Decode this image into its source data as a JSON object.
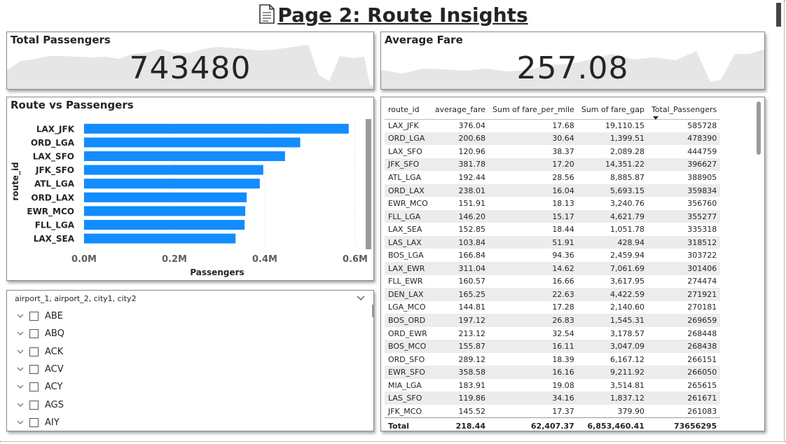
{
  "page": {
    "title": "Page 2: Route Insights",
    "title_icon": "document-icon"
  },
  "kpis": {
    "total_passengers": {
      "title": "Total Passengers",
      "value": "743480"
    },
    "average_fare": {
      "title": "Average Fare",
      "value": "257.08"
    }
  },
  "route_chart": {
    "title": "Route vs Passengers",
    "chart_data": {
      "type": "bar",
      "orientation": "horizontal",
      "title": "Route vs Passengers",
      "xlabel": "Passengers",
      "ylabel": "route_id",
      "categories": [
        "LAX_JFK",
        "ORD_LGA",
        "LAX_SFO",
        "JFK_SFO",
        "ATL_LGA",
        "ORD_LAX",
        "EWR_MCO",
        "FLL_LGA",
        "LAX_SEA"
      ],
      "values": [
        585728,
        478390,
        444759,
        396627,
        388905,
        359834,
        356760,
        355277,
        335318
      ],
      "xlim": [
        0,
        600000
      ],
      "xticks": [
        0,
        200000,
        400000,
        600000
      ],
      "xtick_labels": [
        "0.0M",
        "0.2M",
        "0.4M",
        "0.6M"
      ],
      "bar_color": "#118DFF",
      "grid": true
    }
  },
  "slicer": {
    "header": "airport_1, airport_2, city1, city2",
    "items": [
      "ABE",
      "ABQ",
      "ACK",
      "ACV",
      "ACY",
      "AGS",
      "AIY"
    ]
  },
  "table": {
    "columns": [
      "route_id",
      "average_fare",
      "Sum of fare_per_mile",
      "Sum of fare_gap",
      "Total_Passengers"
    ],
    "rows": [
      [
        "LAX_JFK",
        "376.04",
        "17.68",
        "19,110.15",
        "585728"
      ],
      [
        "ORD_LGA",
        "200.68",
        "30.64",
        "1,399.51",
        "478390"
      ],
      [
        "LAX_SFO",
        "120.96",
        "38.37",
        "2,089.28",
        "444759"
      ],
      [
        "JFK_SFO",
        "381.78",
        "17.20",
        "14,351.22",
        "396627"
      ],
      [
        "ATL_LGA",
        "192.44",
        "28.56",
        "8,885.87",
        "388905"
      ],
      [
        "ORD_LAX",
        "238.01",
        "16.04",
        "5,693.15",
        "359834"
      ],
      [
        "EWR_MCO",
        "151.91",
        "18.13",
        "3,240.76",
        "356760"
      ],
      [
        "FLL_LGA",
        "146.20",
        "15.17",
        "4,621.79",
        "355277"
      ],
      [
        "LAX_SEA",
        "152.85",
        "18.44",
        "1,051.78",
        "335318"
      ],
      [
        "LAS_LAX",
        "103.84",
        "51.91",
        "428.94",
        "318512"
      ],
      [
        "BOS_LGA",
        "166.84",
        "94.36",
        "2,459.94",
        "303722"
      ],
      [
        "LAX_EWR",
        "311.04",
        "14.62",
        "7,061.69",
        "301406"
      ],
      [
        "FLL_EWR",
        "160.57",
        "16.66",
        "3,617.95",
        "274474"
      ],
      [
        "DEN_LAX",
        "165.25",
        "22.63",
        "4,422.59",
        "271921"
      ],
      [
        "LGA_MCO",
        "144.81",
        "17.28",
        "2,140.60",
        "270181"
      ],
      [
        "BOS_ORD",
        "197.12",
        "26.83",
        "1,545.31",
        "269659"
      ],
      [
        "ORD_EWR",
        "213.12",
        "32.54",
        "3,178.57",
        "268448"
      ],
      [
        "BOS_MCO",
        "155.87",
        "16.11",
        "3,047.09",
        "268438"
      ],
      [
        "ORD_SFO",
        "289.12",
        "18.39",
        "6,167.12",
        "266151"
      ],
      [
        "EWR_SFO",
        "358.58",
        "16.16",
        "9,211.92",
        "266050"
      ],
      [
        "MIA_LGA",
        "183.91",
        "19.08",
        "3,514.81",
        "265615"
      ],
      [
        "LAS_SFO",
        "119.86",
        "34.16",
        "1,837.12",
        "261671"
      ],
      [
        "JFK_MCO",
        "145.52",
        "17.37",
        "379.90",
        "261083"
      ]
    ],
    "total": [
      "Total",
      "218.44",
      "62,407.37",
      "6,853,460.41",
      "73656295"
    ]
  }
}
